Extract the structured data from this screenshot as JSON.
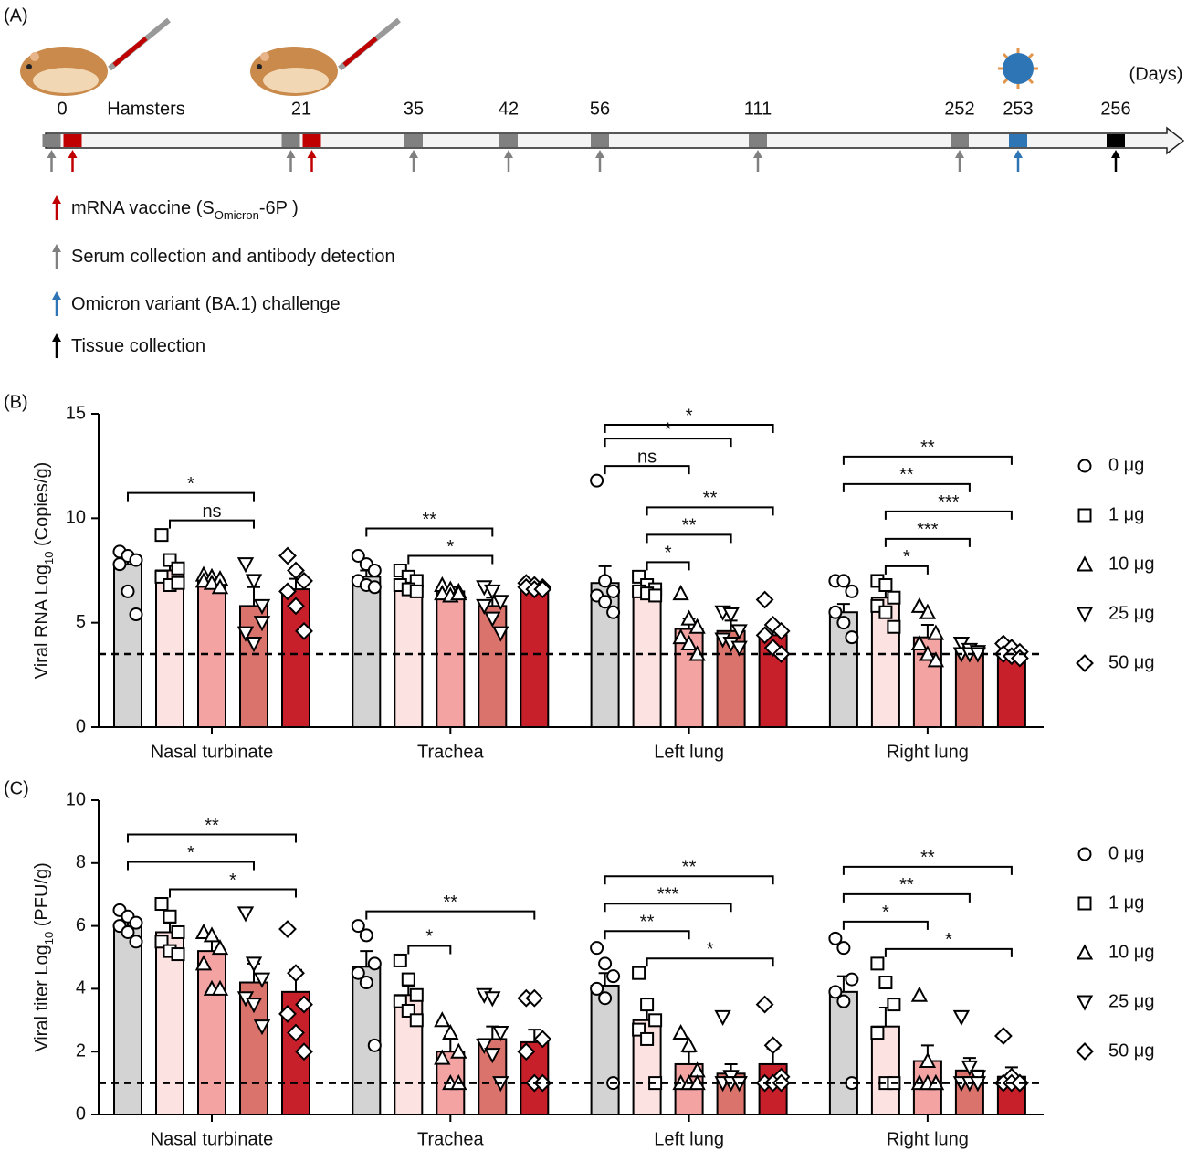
{
  "timeline": {
    "panel_label": "(A)",
    "subject": "Hamsters",
    "unit": "(Days)",
    "days": [
      0,
      21,
      35,
      42,
      56,
      111,
      252,
      253,
      256
    ],
    "legend": [
      {
        "text": [
          "mRNA vaccine (S",
          "Omicron",
          "-6P )"
        ],
        "color": "#c00000",
        "days": [
          0,
          21
        ]
      },
      {
        "text": [
          "Serum collection and antibody detection"
        ],
        "color": "#808080",
        "days": [
          0,
          21,
          35,
          42,
          56,
          111,
          252
        ]
      },
      {
        "text": [
          "Omicron variant (BA.1) challenge"
        ],
        "color": "#2e75b6",
        "days": [
          253
        ]
      },
      {
        "text": [
          "Tissue collection"
        ],
        "color": "#000000",
        "days": [
          256
        ]
      }
    ]
  },
  "chart_data": [
    {
      "type": "bar",
      "panel_label": "(B)",
      "ylabel": [
        "Viral RNA Log",
        "10",
        " (Copies/g)"
      ],
      "ylim": [
        0,
        15
      ],
      "yticks": [
        0,
        5,
        10,
        15
      ],
      "limit": 3.5,
      "categories": [
        "Nasal turbinate",
        "Trachea",
        "Left lung",
        "Right lung"
      ],
      "series": [
        {
          "name": "0 μg",
          "color": "#d3d3d3",
          "marker": "circle",
          "values": [
            7.8,
            7.2,
            6.9,
            5.5
          ],
          "errors": [
            0.5,
            0.3,
            0.8,
            0.4
          ],
          "points": [
            [
              8.4,
              8.2,
              8.0,
              7.8,
              6.5,
              5.4
            ],
            [
              8.2,
              7.8,
              7.5,
              7.0,
              6.8,
              6.7
            ],
            [
              11.8,
              7.0,
              6.5,
              6.3,
              6.0,
              5.5
            ],
            [
              7.0,
              7.0,
              6.5,
              5.5,
              5.0,
              4.3
            ]
          ]
        },
        {
          "name": "1 μg",
          "color": "#fde2e2",
          "marker": "square",
          "values": [
            7.5,
            7.0,
            6.6,
            6.2
          ],
          "errors": [
            0.4,
            0.3,
            0.3,
            0.5
          ],
          "points": [
            [
              9.2,
              8.0,
              7.6,
              7.2,
              6.8,
              6.9
            ],
            [
              7.5,
              7.2,
              7.0,
              6.8,
              6.6,
              6.5
            ],
            [
              7.2,
              6.8,
              6.6,
              6.5,
              6.4,
              6.3
            ],
            [
              7.0,
              6.8,
              6.2,
              5.8,
              5.5,
              4.8
            ]
          ]
        },
        {
          "name": "10 μg",
          "color": "#f4a3a3",
          "marker": "triangle",
          "values": [
            7.0,
            6.5,
            4.7,
            4.3
          ],
          "errors": [
            0.2,
            0.2,
            0.5,
            0.6
          ],
          "points": [
            [
              7.3,
              7.2,
              7.1,
              7.0,
              6.9,
              6.7
            ],
            [
              6.8,
              6.6,
              6.5,
              6.4,
              6.3,
              6.4
            ],
            [
              6.4,
              5.2,
              4.8,
              4.3,
              4.0,
              3.5
            ],
            [
              5.8,
              5.5,
              4.5,
              4.0,
              3.5,
              3.2
            ]
          ]
        },
        {
          "name": "25 μg",
          "color": "#d9736c",
          "marker": "triangle-down",
          "values": [
            5.8,
            5.8,
            4.6,
            3.6
          ],
          "errors": [
            0.9,
            0.4,
            0.5,
            0.1
          ],
          "points": [
            [
              7.8,
              7.0,
              5.8,
              4.5,
              4.0,
              5.0
            ],
            [
              6.7,
              6.5,
              6.0,
              5.8,
              5.2,
              4.5
            ],
            [
              5.5,
              5.4,
              4.6,
              4.2,
              4.0,
              3.8
            ],
            [
              4.0,
              3.7,
              3.6,
              3.5,
              3.5,
              3.5
            ]
          ]
        },
        {
          "name": "50 μg",
          "color": "#c8202a",
          "marker": "diamond",
          "values": [
            6.6,
            6.7,
            4.4,
            3.5
          ],
          "errors": [
            0.5,
            0.1,
            0.4,
            0.2
          ],
          "points": [
            [
              8.2,
              7.5,
              7.0,
              6.5,
              5.8,
              4.6
            ],
            [
              6.9,
              6.8,
              6.7,
              6.7,
              6.6,
              6.6
            ],
            [
              6.1,
              4.9,
              4.6,
              4.4,
              3.8,
              3.5
            ],
            [
              4.0,
              3.8,
              3.6,
              3.5,
              3.4,
              3.3
            ]
          ]
        }
      ],
      "comparisons": [
        {
          "group": "Nasal turbinate",
          "from": "1 μg",
          "to": "25 μg",
          "label": "ns"
        },
        {
          "group": "Nasal turbinate",
          "from": "0 μg",
          "to": "25 μg",
          "label": "*"
        },
        {
          "group": "Trachea",
          "from": "1 μg",
          "to": "25 μg",
          "label": "*"
        },
        {
          "group": "Trachea",
          "from": "0 μg",
          "to": "25 μg",
          "label": "**"
        },
        {
          "group": "Left lung",
          "from": "1 μg",
          "to": "10 μg",
          "label": "*"
        },
        {
          "group": "Left lung",
          "from": "1 μg",
          "to": "25 μg",
          "label": "**"
        },
        {
          "group": "Left lung",
          "from": "1 μg",
          "to": "50 μg",
          "label": "**"
        },
        {
          "group": "Left lung",
          "from": "0 μg",
          "to": "10 μg",
          "label": "ns"
        },
        {
          "group": "Left lung",
          "from": "0 μg",
          "to": "25 μg",
          "label": "*"
        },
        {
          "group": "Left lung",
          "from": "0 μg",
          "to": "50 μg",
          "label": "*"
        },
        {
          "group": "Right lung",
          "from": "1 μg",
          "to": "10 μg",
          "label": "*"
        },
        {
          "group": "Right lung",
          "from": "1 μg",
          "to": "25 μg",
          "label": "***"
        },
        {
          "group": "Right lung",
          "from": "1 μg",
          "to": "50 μg",
          "label": "***"
        },
        {
          "group": "Right lung",
          "from": "0 μg",
          "to": "25 μg",
          "label": "**"
        },
        {
          "group": "Right lung",
          "from": "0 μg",
          "to": "50 μg",
          "label": "**"
        }
      ]
    },
    {
      "type": "bar",
      "panel_label": "(C)",
      "ylabel": [
        "Viral titer Log",
        "10",
        " (PFU/g)"
      ],
      "ylim": [
        0,
        10
      ],
      "yticks": [
        0,
        2,
        4,
        6,
        8,
        10
      ],
      "limit": 1,
      "categories": [
        "Nasal turbinate",
        "Trachea",
        "Left lung",
        "Right lung"
      ],
      "series": [
        {
          "name": "0 μg",
          "color": "#d3d3d3",
          "marker": "circle",
          "values": [
            6.0,
            4.7,
            4.1,
            3.9
          ],
          "errors": [
            0.2,
            0.5,
            0.4,
            0.5
          ],
          "points": [
            [
              6.5,
              6.3,
              6.1,
              6.0,
              5.8,
              5.5
            ],
            [
              6.0,
              5.7,
              4.8,
              4.5,
              4.2,
              2.2
            ],
            [
              5.3,
              4.8,
              4.4,
              4.0,
              3.7,
              1.0
            ],
            [
              5.6,
              5.3,
              4.3,
              3.9,
              3.6,
              1.0
            ]
          ]
        },
        {
          "name": "1 μg",
          "color": "#fde2e2",
          "marker": "square",
          "values": [
            5.8,
            3.8,
            3.0,
            2.8
          ],
          "errors": [
            0.3,
            0.3,
            0.4,
            0.6
          ],
          "points": [
            [
              6.7,
              6.3,
              5.8,
              5.5,
              5.2,
              5.1
            ],
            [
              4.9,
              4.3,
              3.8,
              3.6,
              3.3,
              3.0
            ],
            [
              4.5,
              3.5,
              3.0,
              2.7,
              2.4,
              1.0
            ],
            [
              4.8,
              4.2,
              3.5,
              2.6,
              1.0,
              1.0
            ]
          ]
        },
        {
          "name": "10 μg",
          "color": "#f4a3a3",
          "marker": "triangle",
          "values": [
            5.2,
            2.0,
            1.6,
            1.7
          ],
          "errors": [
            0.4,
            0.5,
            0.4,
            0.5
          ],
          "points": [
            [
              5.8,
              5.7,
              5.3,
              4.8,
              4.0,
              4.0
            ],
            [
              3.0,
              2.6,
              2.0,
              1.8,
              1.0,
              1.0
            ],
            [
              2.6,
              2.2,
              1.4,
              1.0,
              1.0,
              1.0
            ],
            [
              3.8,
              1.7,
              1.0,
              1.0,
              1.0,
              1.0
            ]
          ]
        },
        {
          "name": "25 μg",
          "color": "#d9736c",
          "marker": "triangle-down",
          "values": [
            4.2,
            2.4,
            1.3,
            1.4
          ],
          "errors": [
            0.6,
            0.4,
            0.3,
            0.4
          ],
          "points": [
            [
              6.4,
              4.8,
              4.3,
              3.7,
              3.5,
              2.8
            ],
            [
              3.8,
              3.7,
              2.6,
              2.2,
              1.9,
              1.0
            ],
            [
              3.1,
              1.2,
              1.0,
              1.0,
              1.0,
              1.0
            ],
            [
              3.1,
              1.5,
              1.2,
              1.0,
              1.0,
              1.0
            ]
          ]
        },
        {
          "name": "50 μg",
          "color": "#c8202a",
          "marker": "diamond",
          "values": [
            3.9,
            2.3,
            1.6,
            1.2
          ],
          "errors": [
            0.7,
            0.4,
            0.5,
            0.3
          ],
          "points": [
            [
              5.9,
              4.5,
              3.5,
              3.2,
              2.6,
              2.0
            ],
            [
              3.7,
              3.7,
              2.4,
              2.0,
              1.0,
              1.0
            ],
            [
              3.5,
              2.2,
              1.2,
              1.0,
              1.0,
              1.0
            ],
            [
              2.5,
              1.2,
              1.0,
              1.0,
              1.0,
              1.0
            ]
          ]
        }
      ],
      "comparisons": [
        {
          "group": "Nasal turbinate",
          "from": "1 μg",
          "to": "50 μg",
          "label": "*"
        },
        {
          "group": "Nasal turbinate",
          "from": "0 μg",
          "to": "25 μg",
          "label": "*"
        },
        {
          "group": "Nasal turbinate",
          "from": "0 μg",
          "to": "50 μg",
          "label": "**"
        },
        {
          "group": "Trachea",
          "from": "1 μg",
          "to": "10 μg",
          "label": "*"
        },
        {
          "group": "Trachea",
          "from": "0 μg",
          "to": "50 μg",
          "label": "**"
        },
        {
          "group": "Left lung",
          "from": "1 μg",
          "to": "50 μg",
          "label": "*"
        },
        {
          "group": "Left lung",
          "from": "0 μg",
          "to": "10 μg",
          "label": "**"
        },
        {
          "group": "Left lung",
          "from": "0 μg",
          "to": "25 μg",
          "label": "***"
        },
        {
          "group": "Left lung",
          "from": "0 μg",
          "to": "50 μg",
          "label": "**"
        },
        {
          "group": "Right lung",
          "from": "1 μg",
          "to": "50 μg",
          "label": "*"
        },
        {
          "group": "Right lung",
          "from": "0 μg",
          "to": "10 μg",
          "label": "*"
        },
        {
          "group": "Right lung",
          "from": "0 μg",
          "to": "25 μg",
          "label": "**"
        },
        {
          "group": "Right lung",
          "from": "0 μg",
          "to": "50 μg",
          "label": "**"
        }
      ]
    }
  ]
}
